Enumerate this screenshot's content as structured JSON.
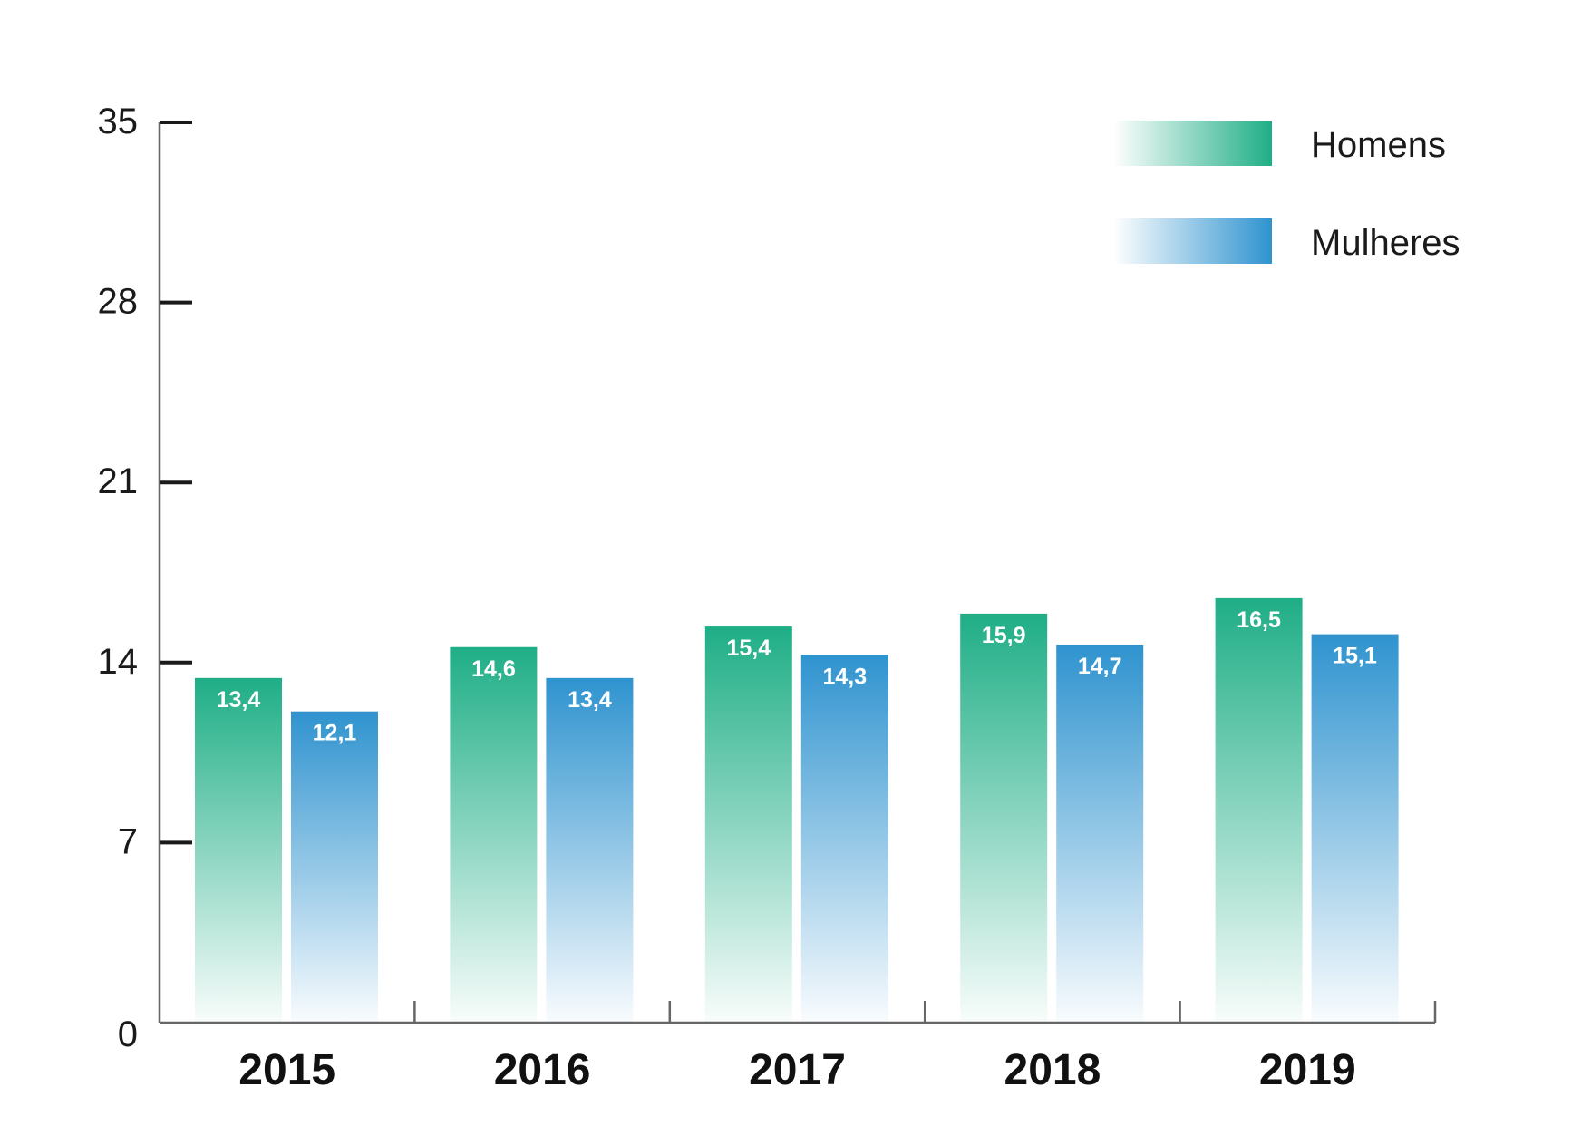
{
  "chart_data": {
    "type": "bar",
    "categories": [
      "2015",
      "2016",
      "2017",
      "2018",
      "2019"
    ],
    "series": [
      {
        "name": "Homens",
        "values": [
          13.4,
          14.6,
          15.4,
          15.9,
          16.5
        ],
        "labels": [
          "13,4",
          "14,6",
          "15,4",
          "15,9",
          "16,5"
        ],
        "color": "#1fae86"
      },
      {
        "name": "Mulheres",
        "values": [
          12.1,
          13.4,
          14.3,
          14.7,
          15.1
        ],
        "labels": [
          "12,1",
          "13,4",
          "14,3",
          "14,7",
          "15,1"
        ],
        "color": "#2f93cf"
      }
    ],
    "yticks": [
      "0",
      "7",
      "14",
      "21",
      "28",
      "35"
    ],
    "ylim": [
      0,
      35
    ],
    "title": "",
    "xlabel": "",
    "ylabel": "",
    "grid": false,
    "legend_position": "top-right"
  }
}
